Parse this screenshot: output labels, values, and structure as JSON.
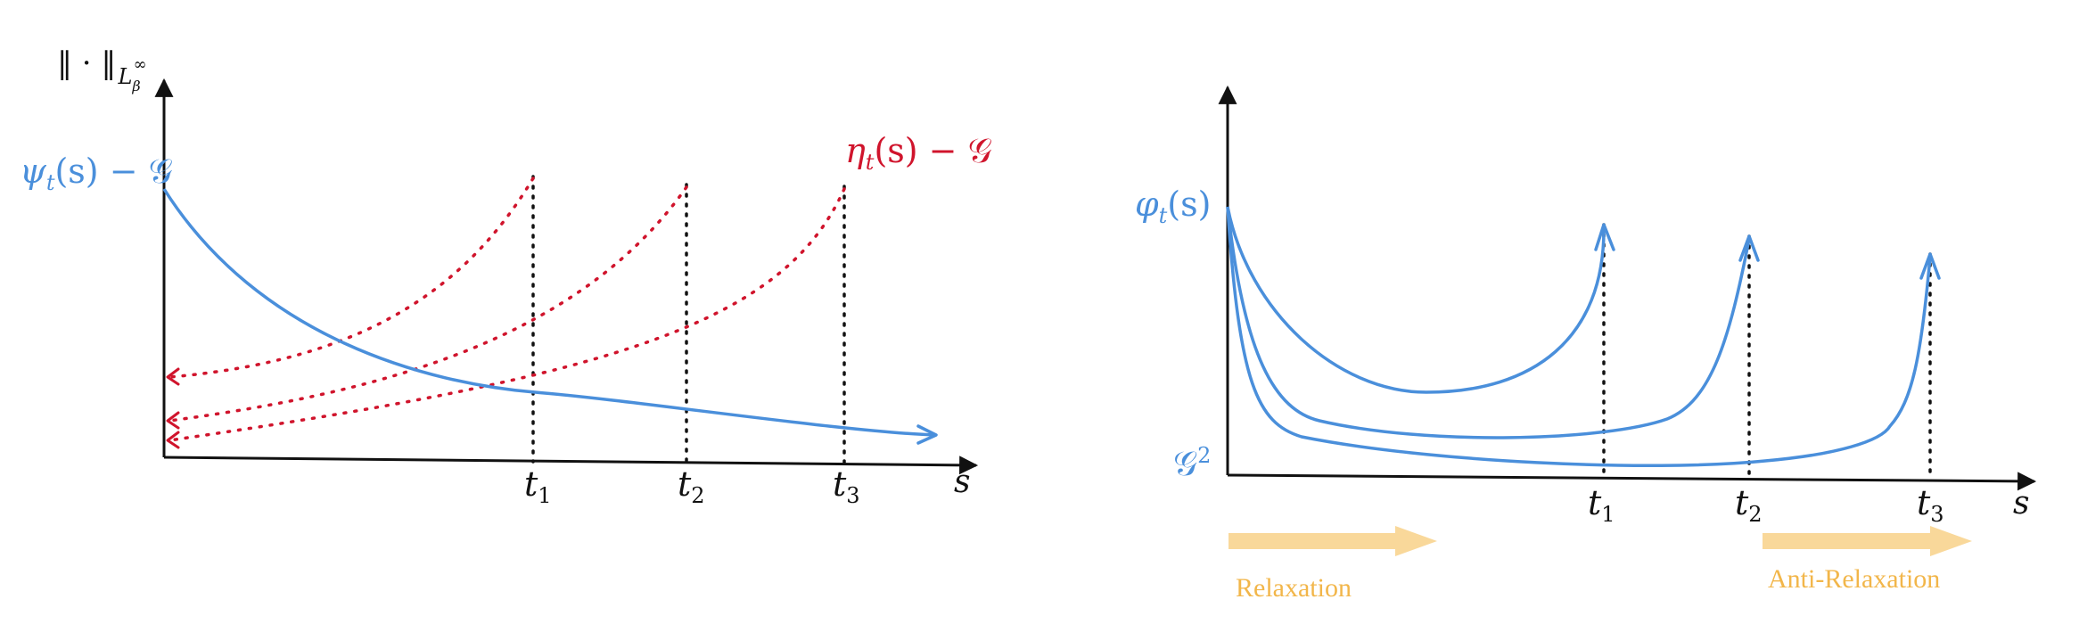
{
  "colors": {
    "psi_blue": "#4a8fdb",
    "eta_red": "#d0142c",
    "axis_black": "#111111",
    "arrow_orange": "#f9d89a",
    "label_orange": "#f2b64a"
  },
  "left_panel": {
    "y_axis_label": {
      "norm": "‖ · ‖",
      "space": "L",
      "space_sub": "β",
      "space_sup": "∞"
    },
    "x_axis_label": "s",
    "psi_label": {
      "symbol": "ψ",
      "sub": "t",
      "arg": "(s) − ",
      "const": "𝒢"
    },
    "eta_label": {
      "symbol": "η",
      "sub": "t",
      "arg": "(s) − ",
      "const": "𝒢"
    },
    "ticks": [
      {
        "base": "t",
        "sub": "1"
      },
      {
        "base": "t",
        "sub": "2"
      },
      {
        "base": "t",
        "sub": "3"
      }
    ]
  },
  "right_panel": {
    "phi_label": {
      "symbol": "φ",
      "sub": "t",
      "arg": "(s)"
    },
    "g2_label": {
      "base": "𝒢",
      "sup": "2"
    },
    "x_axis_label": "s",
    "ticks": [
      {
        "base": "t",
        "sub": "1"
      },
      {
        "base": "t",
        "sub": "2"
      },
      {
        "base": "t",
        "sub": "3"
      }
    ],
    "relaxation_label": "Relaxation",
    "anti_relaxation_label": "Anti-Relaxation"
  }
}
